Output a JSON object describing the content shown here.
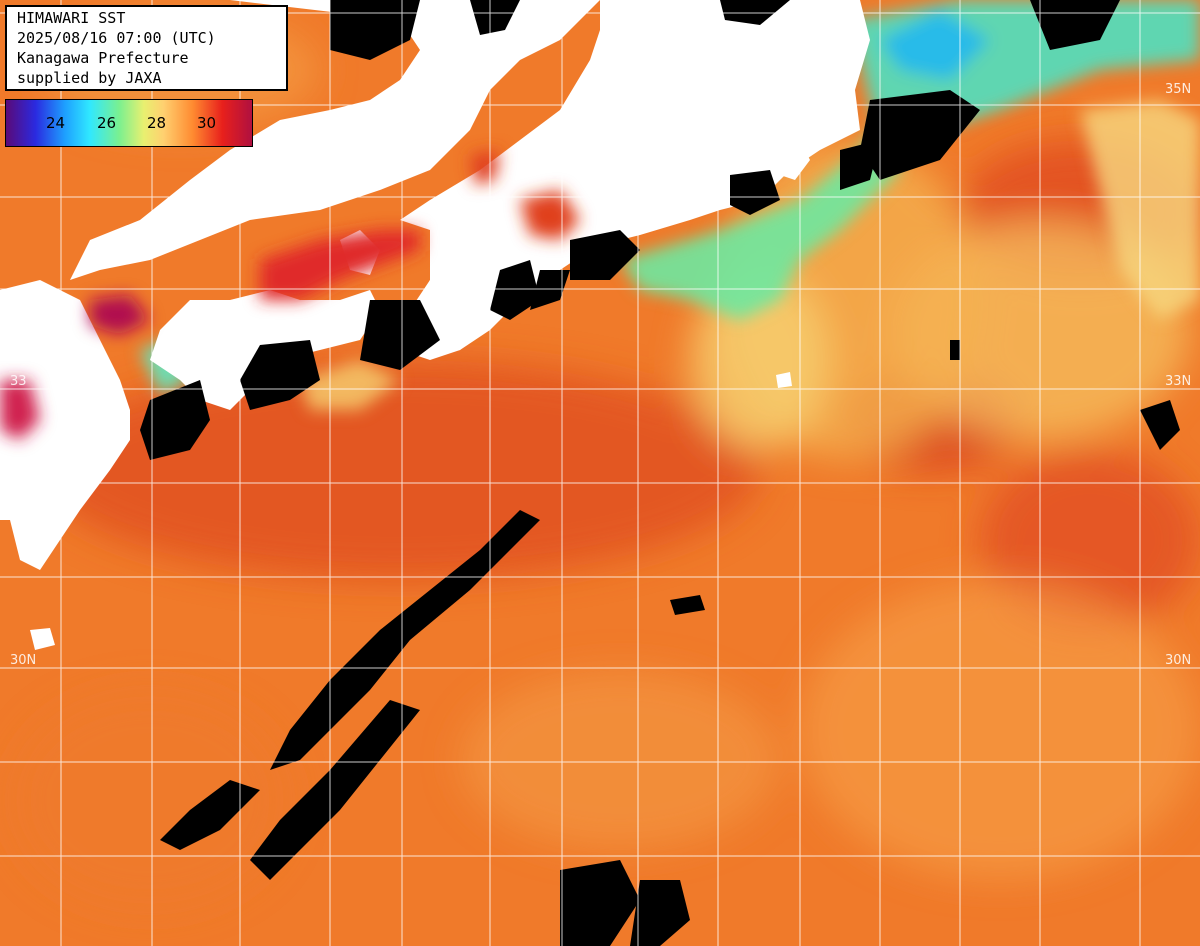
{
  "info": {
    "title": "HIMAWARI SST",
    "datetime": "2025/08/16 07:00 (UTC)",
    "organization": "Kanagawa Prefecture",
    "credit": "supplied by JAXA"
  },
  "legend": {
    "ticks": [
      "24",
      "26",
      "28",
      "30"
    ]
  },
  "lat_labels": {
    "n35_right": "35N",
    "n33_left": "33",
    "n33_right": "33N",
    "n30_left": "30N",
    "n30_right": "30N"
  },
  "colors": {
    "land": "#ffffff",
    "cloud": "#000000",
    "sea_warm": "#f07a2a",
    "sea_hot": "#e0401c",
    "sea_cool": "#f5c050",
    "sea_cold": "#60e0a0",
    "grid": "#ffffff"
  }
}
